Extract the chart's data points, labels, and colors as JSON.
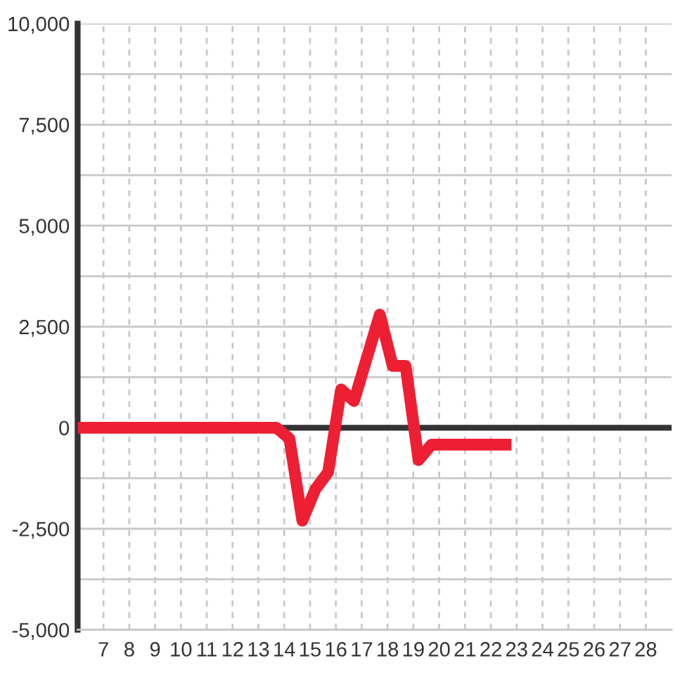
{
  "chart_data": {
    "type": "line",
    "x": [
      6,
      13.7,
      14.2,
      14.7,
      15.2,
      15.7,
      16.2,
      16.7,
      17.7,
      18.2,
      18.7,
      19.2,
      19.7,
      22.8
    ],
    "series": [
      {
        "color": "#ee1f33",
        "values": [
          0,
          0,
          -270,
          -2300,
          -1530,
          -1100,
          950,
          660,
          2800,
          1530,
          1530,
          -800,
          -420,
          -420
        ]
      }
    ],
    "xlim": [
      6,
      29
    ],
    "xticks": [
      7,
      8,
      9,
      10,
      11,
      12,
      13,
      14,
      15,
      16,
      17,
      18,
      19,
      20,
      21,
      22,
      23,
      24,
      25,
      26,
      27,
      28
    ],
    "ylim": [
      -5000,
      10000
    ],
    "yticks": [
      {
        "value": 10000,
        "label": "10,000"
      },
      {
        "value": 8750,
        "label": null
      },
      {
        "value": 7500,
        "label": "7,500"
      },
      {
        "value": 6250,
        "label": null
      },
      {
        "value": 5000,
        "label": "5,000"
      },
      {
        "value": 3750,
        "label": null
      },
      {
        "value": 2500,
        "label": "2,500"
      },
      {
        "value": 1250,
        "label": null
      },
      0,
      {
        "value": -1250,
        "label": null
      },
      {
        "value": -2500,
        "label": "-2,500"
      },
      {
        "value": -3750,
        "label": null
      },
      {
        "value": -5000,
        "label": "-5,000"
      }
    ],
    "grid": true,
    "marker": "none",
    "line_style": "solid",
    "ref_lines": [
      {
        "axis": "y",
        "value": 0,
        "color": "#333333"
      }
    ]
  }
}
